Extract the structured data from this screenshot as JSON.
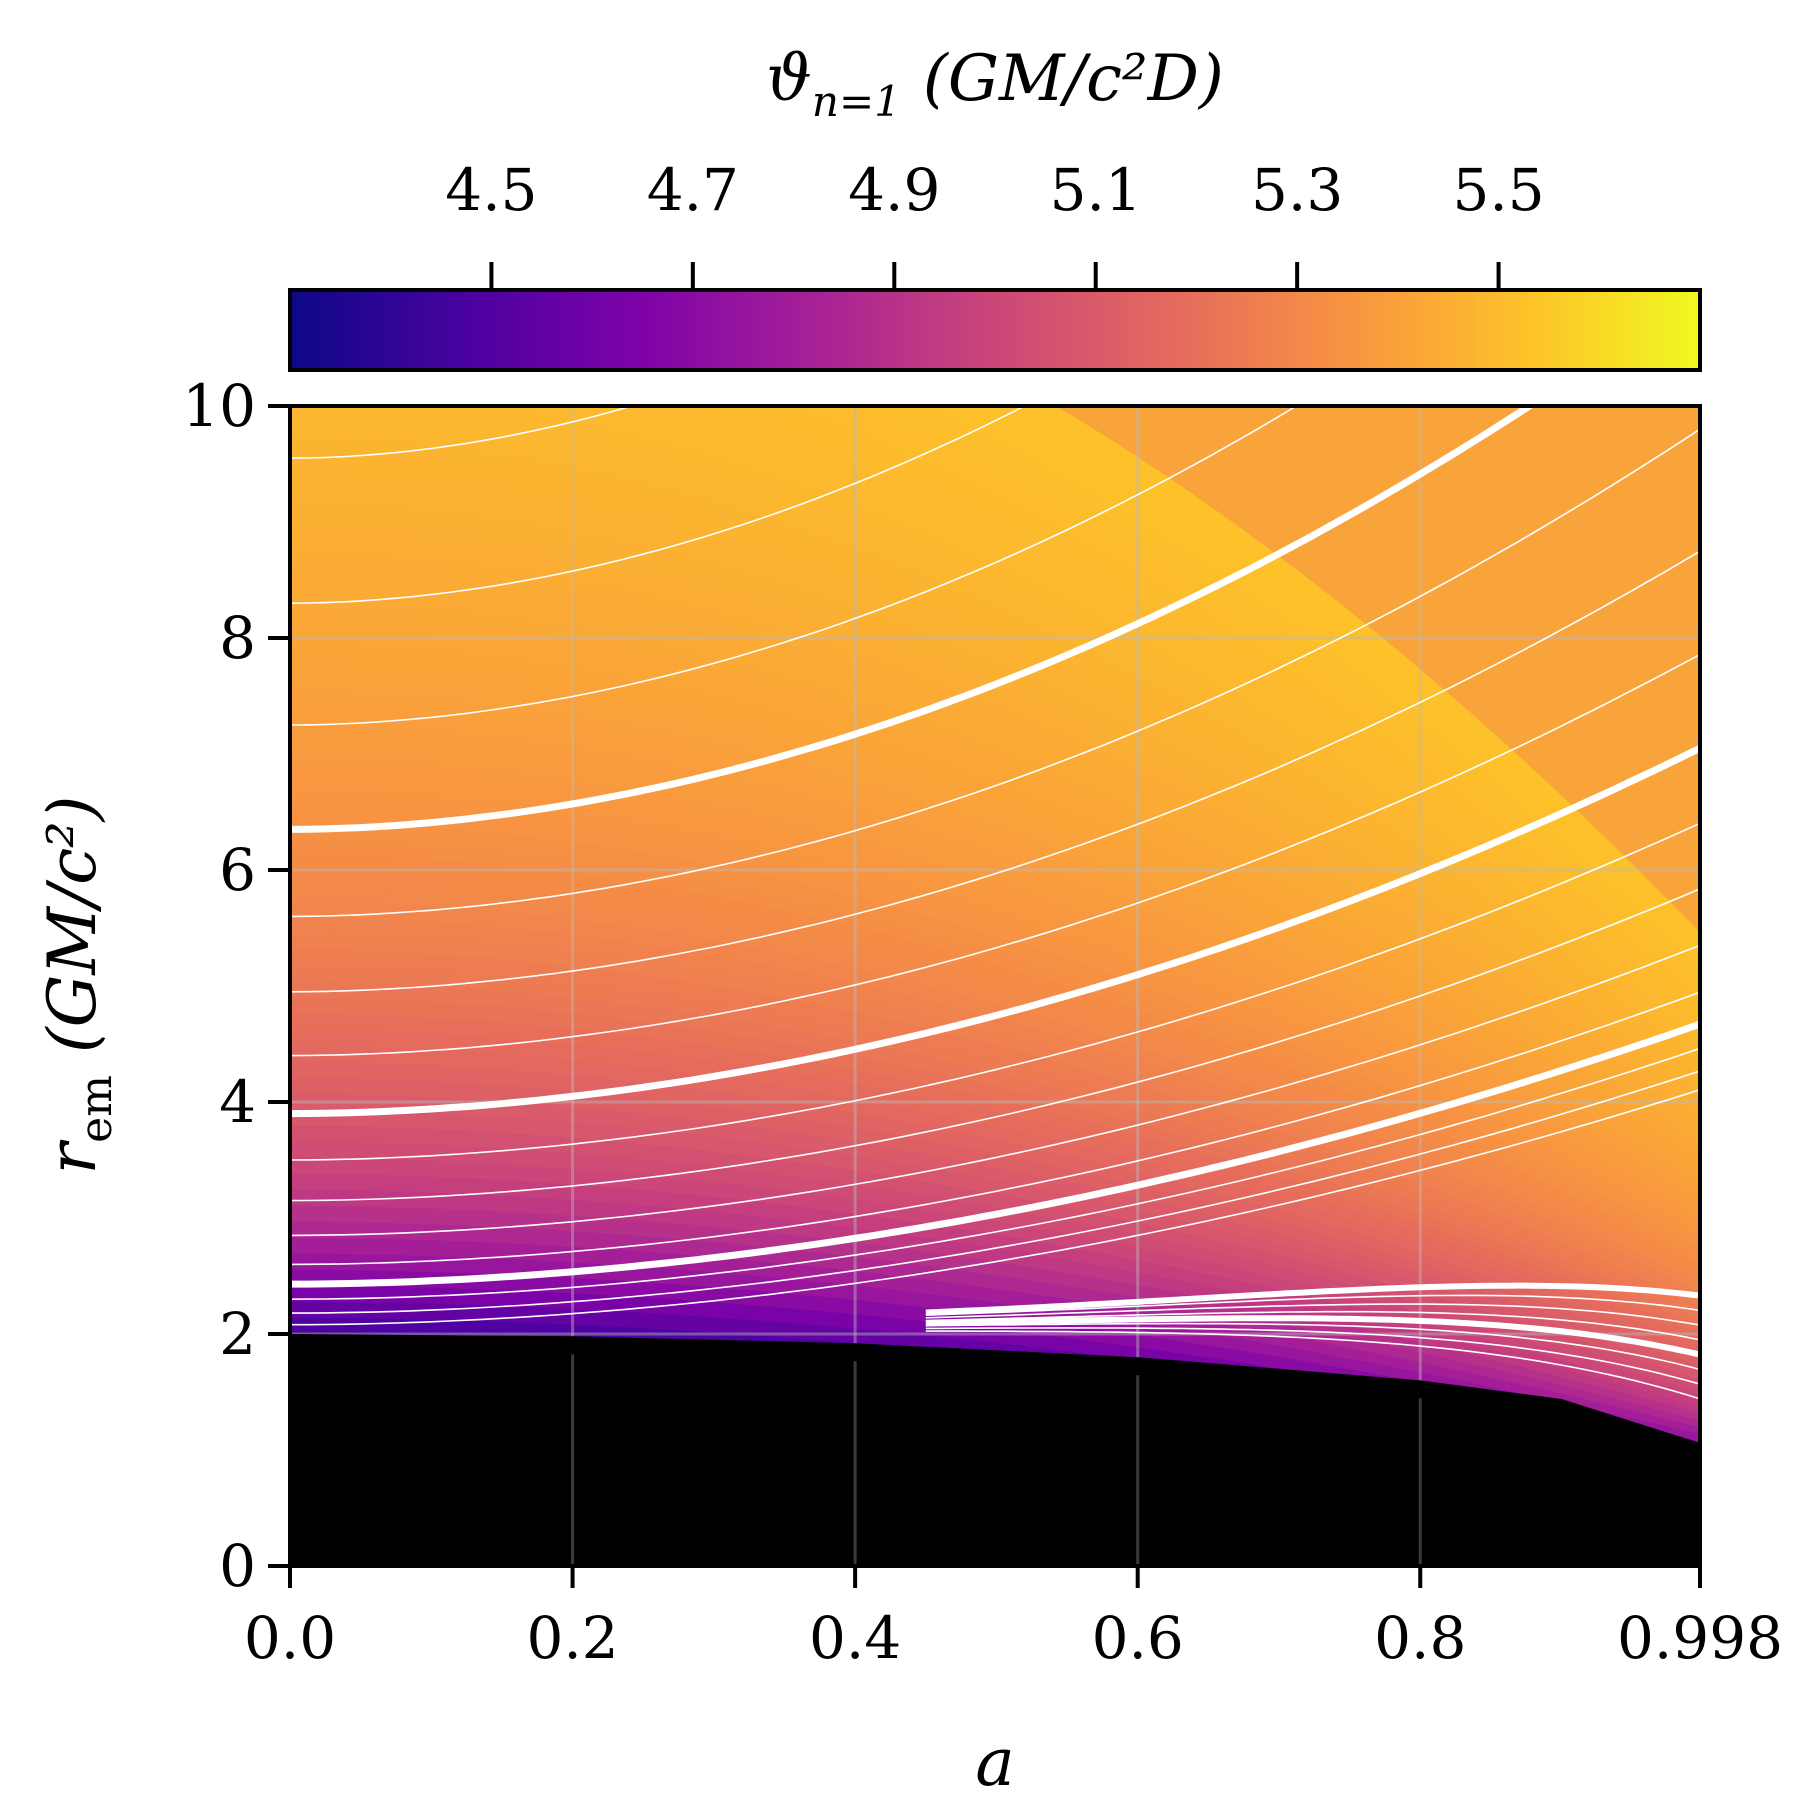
{
  "chart_data": {
    "type": "heatmap",
    "title": "",
    "colormap": "plasma",
    "colorbar": {
      "label_main": "ϑ",
      "label_sub": "n=1",
      "label_unit": "(GM/c²D)",
      "range": [
        4.3,
        5.7
      ],
      "ticks": [
        4.5,
        4.7,
        4.9,
        5.1,
        5.3,
        5.5
      ],
      "tick_labels": [
        "4.5",
        "4.7",
        "4.9",
        "5.1",
        "5.3",
        "5.5"
      ],
      "placement": "top"
    },
    "xlabel": "a",
    "ylabel_main": "r",
    "ylabel_sub": "em",
    "ylabel_unit": "(GM/c²)",
    "xlim": [
      0.0,
      0.998
    ],
    "ylim": [
      0,
      10
    ],
    "xticks": [
      0.0,
      0.2,
      0.4,
      0.6,
      0.8,
      0.998
    ],
    "xtick_labels": [
      "0.0",
      "0.2",
      "0.4",
      "0.6",
      "0.8",
      "0.998"
    ],
    "yticks": [
      0,
      2,
      4,
      6,
      8,
      10
    ],
    "ytick_labels": [
      "0",
      "2",
      "4",
      "6",
      "8",
      "10"
    ],
    "grid": true,
    "masked_region": {
      "description_value": "horizon",
      "color": "#000000",
      "boundary": [
        [
          0.0,
          2.0
        ],
        [
          0.2,
          1.98
        ],
        [
          0.4,
          1.92
        ],
        [
          0.6,
          1.8
        ],
        [
          0.8,
          1.6
        ],
        [
          0.9,
          1.44
        ],
        [
          0.998,
          1.06
        ]
      ]
    },
    "contours": [
      {
        "level_at_a0": 9.55,
        "thick": false
      },
      {
        "level_at_a0": 8.3,
        "thick": false
      },
      {
        "level_at_a0": 7.25,
        "thick": false
      },
      {
        "level_at_a0": 6.35,
        "thick": true
      },
      {
        "level_at_a0": 5.6,
        "thick": false
      },
      {
        "level_at_a0": 4.95,
        "thick": false
      },
      {
        "level_at_a0": 4.4,
        "thick": false
      },
      {
        "level_at_a0": 3.9,
        "thick": true
      },
      {
        "level_at_a0": 3.5,
        "thick": false
      },
      {
        "level_at_a0": 3.15,
        "thick": false
      },
      {
        "level_at_a0": 2.85,
        "thick": false
      },
      {
        "level_at_a0": 2.6,
        "thick": false
      },
      {
        "level_at_a0": 2.43,
        "thick": true
      },
      {
        "level_at_a0": 2.3,
        "thick": false
      },
      {
        "level_at_a0": 2.18,
        "thick": false
      },
      {
        "level_at_a0": 2.08,
        "thick": false
      }
    ]
  }
}
